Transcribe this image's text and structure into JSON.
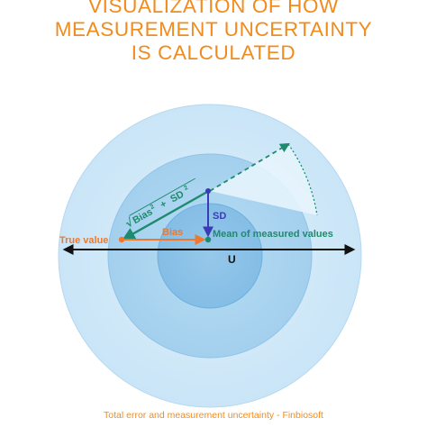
{
  "title_lines": [
    "VISUALIZATION OF HOW",
    "MEASUREMENT UNCERTAINTY",
    "IS CALCULATED"
  ],
  "labels": {
    "true_value": "True value",
    "bias": "Bias",
    "sd": "SD",
    "mean": "Mean of measured values",
    "u": "U",
    "hypotenuse_bias": "Bias",
    "hypotenuse_sd": "SD"
  },
  "caption": "Total error and measurement uncertainty - Finbiosoft",
  "colors": {
    "title": "#f08c1e",
    "bias": "#f0782d",
    "sd": "#3b3bb5",
    "mean": "#1f8a6e",
    "axis": "#111111"
  }
}
